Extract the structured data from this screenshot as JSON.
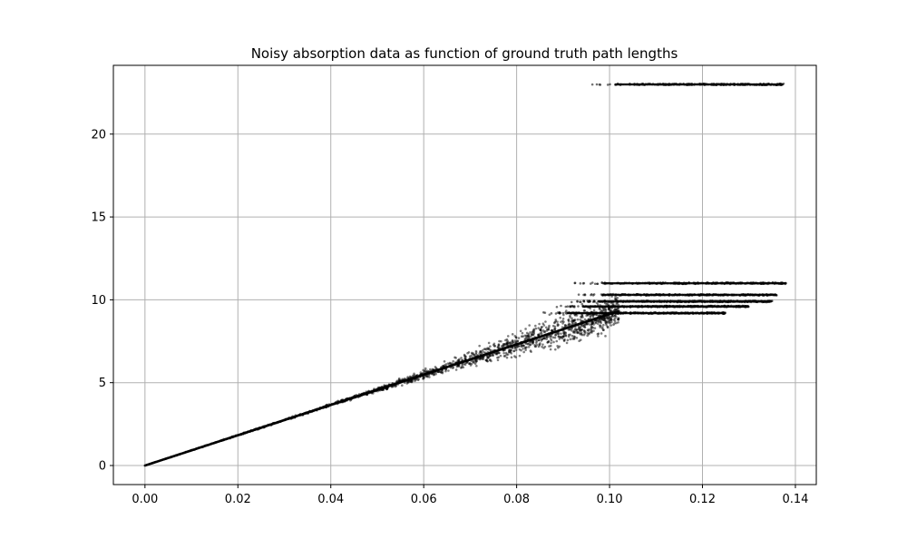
{
  "chart_data": {
    "type": "scatter",
    "title": "Noisy absorption data as function of ground truth path lengths",
    "xlabel": "",
    "ylabel": "",
    "xlim": [
      -0.0068,
      0.1445
    ],
    "ylim": [
      -1.15,
      24.15
    ],
    "xticks": [
      "0.00",
      "0.02",
      "0.04",
      "0.06",
      "0.08",
      "0.10",
      "0.12",
      "0.14"
    ],
    "xtick_values": [
      0.0,
      0.02,
      0.04,
      0.06,
      0.08,
      0.1,
      0.12,
      0.14
    ],
    "yticks": [
      "0",
      "5",
      "10",
      "15",
      "20"
    ],
    "ytick_values": [
      0,
      5,
      10,
      15,
      20
    ],
    "grid": true,
    "legend": "none",
    "colors": {
      "points": "#000000",
      "grid": "#b0b0b0",
      "axes": "#000000"
    },
    "series": [
      {
        "kind": "linear-band",
        "description_points": [
          [
            0.0,
            0.0
          ],
          [
            0.01,
            0.91
          ],
          [
            0.02,
            1.83
          ],
          [
            0.03,
            2.74
          ],
          [
            0.04,
            3.66
          ],
          [
            0.05,
            4.57
          ],
          [
            0.06,
            5.49
          ],
          [
            0.07,
            6.4
          ],
          [
            0.08,
            7.31
          ],
          [
            0.09,
            8.23
          ],
          [
            0.1,
            9.14
          ]
        ],
        "slope": 91.4,
        "x_range": [
          0.0,
          0.102
        ],
        "spread_at_x": [
          [
            0.0,
            0.0
          ],
          [
            0.05,
            0.1
          ],
          [
            0.07,
            0.4
          ],
          [
            0.08,
            0.7
          ],
          [
            0.09,
            0.9
          ],
          [
            0.1,
            1.0
          ]
        ]
      },
      {
        "kind": "saturation-band",
        "y": 9.2,
        "x_range": [
          0.085,
          0.125
        ]
      },
      {
        "kind": "saturation-band",
        "y": 9.6,
        "x_range": [
          0.088,
          0.13
        ]
      },
      {
        "kind": "saturation-band",
        "y": 9.9,
        "x_range": [
          0.091,
          0.135
        ]
      },
      {
        "kind": "saturation-band",
        "y": 10.3,
        "x_range": [
          0.092,
          0.136
        ]
      },
      {
        "kind": "saturation-band",
        "y": 11.0,
        "x_range": [
          0.092,
          0.138
        ]
      },
      {
        "kind": "saturation-band",
        "y": 23.0,
        "x_range": [
          0.095,
          0.1375
        ]
      }
    ]
  }
}
